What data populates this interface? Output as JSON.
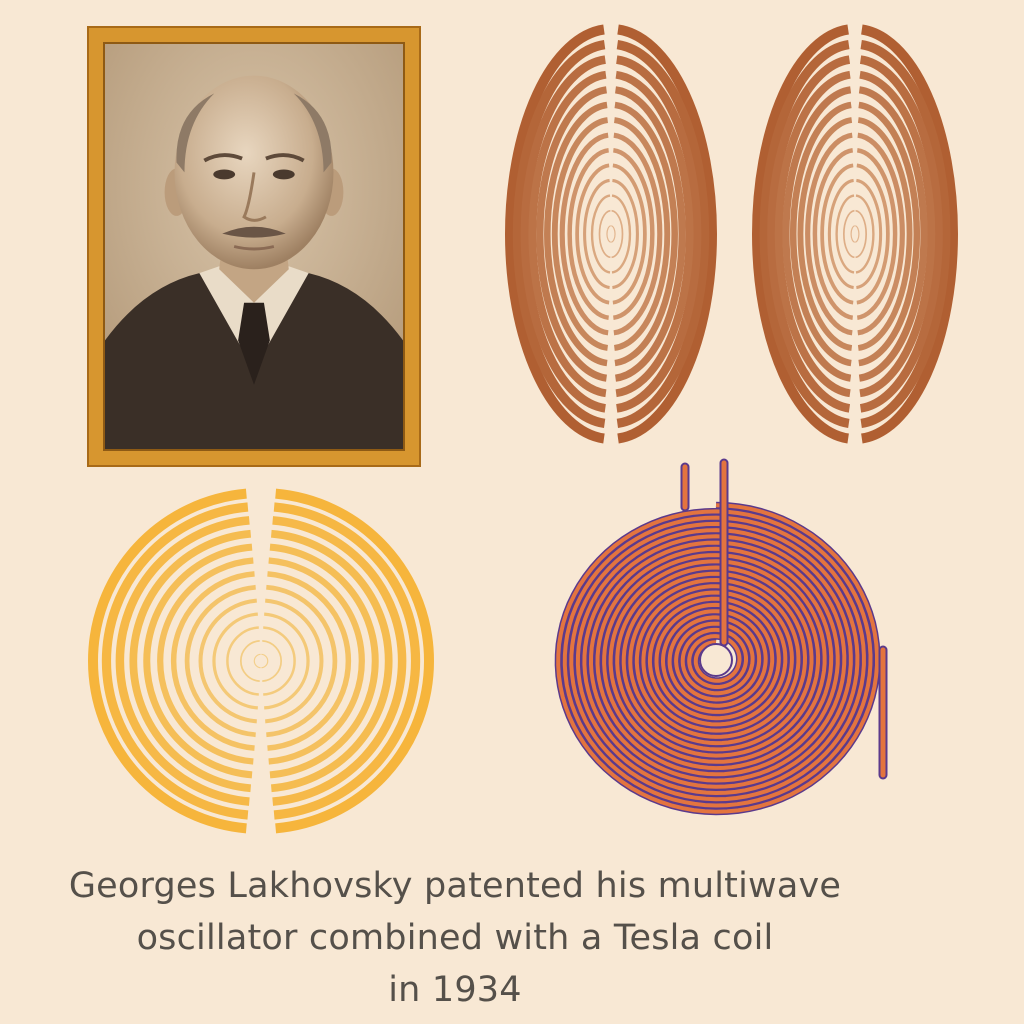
{
  "caption": {
    "line1": "Georges Lakhovsky patented his multiwave",
    "line2": "oscillator combined with a Tesla coil",
    "line3": "in 1934"
  },
  "colors": {
    "background": "#f8e8d4",
    "frame": "#d7962f",
    "copper": "#b8683a",
    "gold": "#f6b53c",
    "coil_orange": "#e3743f",
    "coil_purple": "#5b3a8c",
    "caption_text": "#55504a"
  }
}
